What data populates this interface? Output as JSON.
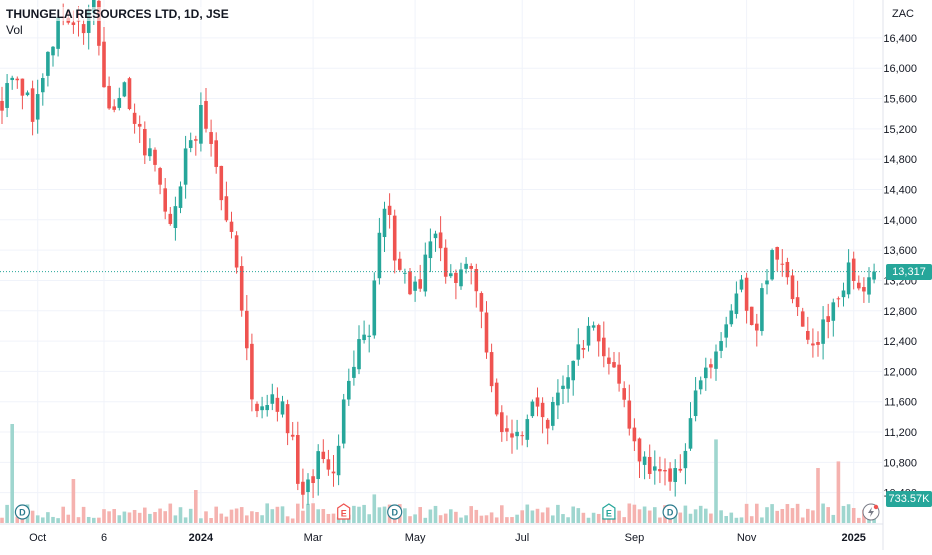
{
  "legend": {
    "symbol_title": "THUNGELA RESOURCES LTD, 1D, JSE",
    "volume_label": "Vol"
  },
  "currency": "ZAC",
  "last_price_label": "13,317",
  "last_volume_label": "733.57K",
  "colors": {
    "up": "#26a69a",
    "down": "#ef5350",
    "up_volume": "#9fd6cf",
    "down_volume": "#f5b2af",
    "grid": "#f0f3fa",
    "axis_text": "#131722"
  },
  "chart_data": {
    "type": "candlestick",
    "ylim": [
      10000,
      16900
    ],
    "y_ticks": [
      16400,
      16000,
      15600,
      15200,
      14800,
      14400,
      14000,
      13600,
      13200,
      12800,
      12400,
      12000,
      11600,
      11200,
      10800,
      10400
    ],
    "y_tick_labels": [
      "16,400",
      "16,000",
      "15,600",
      "15,200",
      "14,800",
      "14,400",
      "14,000",
      "13,600",
      "13,200",
      "12,800",
      "12,400",
      "12,000",
      "11,600",
      "11,200",
      "10,800",
      "10,400"
    ],
    "x_ticks": [
      {
        "label": "Oct",
        "bar": 7
      },
      {
        "label": "6",
        "bar": 20
      },
      {
        "label": "2024",
        "bar": 39
      },
      {
        "label": "Mar",
        "bar": 61
      },
      {
        "label": "May",
        "bar": 81
      },
      {
        "label": "Jul",
        "bar": 102
      },
      {
        "label": "Sep",
        "bar": 124
      },
      {
        "label": "Nov",
        "bar": 146
      },
      {
        "label": "2025",
        "bar": 167
      }
    ],
    "markers": [
      {
        "type": "D",
        "bar": 4
      },
      {
        "type": "E",
        "bar": 67
      },
      {
        "type": "D",
        "bar": 77
      },
      {
        "type": "E",
        "bar": 119
      },
      {
        "type": "D",
        "bar": 131
      }
    ],
    "last_close": 13317,
    "last_volume": "733.57K",
    "anchors": [
      [
        0,
        15600
      ],
      [
        3,
        16000
      ],
      [
        6,
        15300
      ],
      [
        9,
        16300
      ],
      [
        12,
        16700
      ],
      [
        15,
        16500
      ],
      [
        18,
        16800
      ],
      [
        21,
        15400
      ],
      [
        24,
        15800
      ],
      [
        27,
        15200
      ],
      [
        30,
        14600
      ],
      [
        33,
        14000
      ],
      [
        36,
        14800
      ],
      [
        39,
        15400
      ],
      [
        42,
        14600
      ],
      [
        45,
        13900
      ],
      [
        47,
        12700
      ],
      [
        49,
        11600
      ],
      [
        52,
        11700
      ],
      [
        55,
        11500
      ],
      [
        57,
        11000
      ],
      [
        59,
        10300
      ],
      [
        62,
        10800
      ],
      [
        65,
        10500
      ],
      [
        67,
        11600
      ],
      [
        69,
        12200
      ],
      [
        72,
        12600
      ],
      [
        75,
        14300
      ],
      [
        77,
        13600
      ],
      [
        80,
        13000
      ],
      [
        82,
        13200
      ],
      [
        85,
        13800
      ],
      [
        88,
        13200
      ],
      [
        91,
        13500
      ],
      [
        93,
        13000
      ],
      [
        95,
        12300
      ],
      [
        98,
        11200
      ],
      [
        101,
        11100
      ],
      [
        104,
        11600
      ],
      [
        107,
        11300
      ],
      [
        110,
        11900
      ],
      [
        113,
        12300
      ],
      [
        116,
        12600
      ],
      [
        119,
        12200
      ],
      [
        122,
        11500
      ],
      [
        125,
        10800
      ],
      [
        128,
        10600
      ],
      [
        131,
        10500
      ],
      [
        134,
        10900
      ],
      [
        136,
        11900
      ],
      [
        139,
        12200
      ],
      [
        142,
        12500
      ],
      [
        145,
        13100
      ],
      [
        148,
        12600
      ],
      [
        151,
        13700
      ],
      [
        154,
        13100
      ],
      [
        157,
        12600
      ],
      [
        160,
        12300
      ],
      [
        163,
        13000
      ],
      [
        166,
        13300
      ],
      [
        169,
        13200
      ],
      [
        171,
        13317
      ]
    ],
    "volume_spikes": [
      [
        2,
        0.45
      ],
      [
        14,
        0.2
      ],
      [
        38,
        0.15
      ],
      [
        73,
        0.13
      ],
      [
        140,
        0.38
      ],
      [
        160,
        0.25
      ],
      [
        164,
        0.28
      ]
    ]
  }
}
